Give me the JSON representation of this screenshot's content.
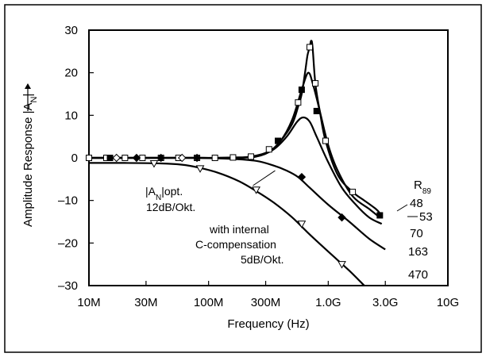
{
  "chart_data": {
    "type": "line",
    "x_scale": "log",
    "xlabel": "Frequency (Hz)",
    "ylabel_main": "Amplitude Response |A",
    "ylabel_sub": "N",
    "ylabel_end": "|",
    "xlim": [
      10000000,
      10000000000
    ],
    "ylim": [
      -30,
      30
    ],
    "x_ticks": [
      {
        "value": 10000000,
        "label": "10M"
      },
      {
        "value": 30000000,
        "label": "30M"
      },
      {
        "value": 100000000,
        "label": "100M"
      },
      {
        "value": 300000000,
        "label": "300M"
      },
      {
        "value": 1000000000,
        "label": "1.0G"
      },
      {
        "value": 3000000000,
        "label": "3.0G"
      },
      {
        "value": 10000000000,
        "label": "10G"
      }
    ],
    "y_ticks": [
      {
        "value": 30,
        "label": "30"
      },
      {
        "value": 20,
        "label": "20"
      },
      {
        "value": 10,
        "label": "10"
      },
      {
        "value": 0,
        "label": "0"
      },
      {
        "value": -10,
        "label": "–10"
      },
      {
        "value": -20,
        "label": "–20"
      },
      {
        "value": -30,
        "label": "–30"
      }
    ],
    "legend_title_main": "R",
    "legend_title_sub": "89",
    "series": [
      {
        "name": "48",
        "marker": "open-square",
        "points": [
          [
            10000000,
            0
          ],
          [
            14000000,
            0
          ],
          [
            20000000,
            0
          ],
          [
            28000000,
            0
          ],
          [
            40000000,
            0
          ],
          [
            56000000,
            0
          ],
          [
            80000000,
            0
          ],
          [
            113000000,
            0
          ],
          [
            160000000,
            0.1
          ],
          [
            226000000,
            0.3
          ],
          [
            320000000,
            1.5
          ],
          [
            400000000,
            4
          ],
          [
            500000000,
            8
          ],
          [
            560000000,
            12
          ],
          [
            600000000,
            15
          ],
          [
            640000000,
            20
          ],
          [
            670000000,
            24
          ],
          [
            700000000,
            26
          ],
          [
            720000000,
            27.5
          ],
          [
            740000000,
            26
          ],
          [
            780000000,
            17.5
          ],
          [
            850000000,
            11
          ],
          [
            950000000,
            4
          ],
          [
            1200000000,
            -4
          ],
          [
            1600000000,
            -8
          ],
          [
            2000000000,
            -10
          ],
          [
            2500000000,
            -12
          ],
          [
            2700000000,
            -13
          ]
        ],
        "marker_points": [
          [
            10000000,
            0
          ],
          [
            14000000,
            0
          ],
          [
            20000000,
            0
          ],
          [
            28000000,
            0
          ],
          [
            40000000,
            0
          ],
          [
            56000000,
            0
          ],
          [
            80000000,
            0
          ],
          [
            113000000,
            0
          ],
          [
            160000000,
            0.1
          ],
          [
            226000000,
            0.3
          ],
          [
            320000000,
            2
          ],
          [
            560000000,
            13
          ],
          [
            700000000,
            26
          ],
          [
            780000000,
            17.5
          ],
          [
            950000000,
            4
          ],
          [
            1600000000,
            -8
          ]
        ]
      },
      {
        "name": "53",
        "marker": "filled-square",
        "points": [
          [
            10000000,
            0
          ],
          [
            15000000,
            0
          ],
          [
            25000000,
            0
          ],
          [
            40000000,
            0
          ],
          [
            70000000,
            0
          ],
          [
            120000000,
            0
          ],
          [
            200000000,
            0.1
          ],
          [
            300000000,
            1
          ],
          [
            400000000,
            4
          ],
          [
            500000000,
            9
          ],
          [
            600000000,
            16
          ],
          [
            680000000,
            20
          ],
          [
            750000000,
            17
          ],
          [
            850000000,
            11
          ],
          [
            1000000000,
            3
          ],
          [
            1200000000,
            -3
          ],
          [
            1600000000,
            -9
          ],
          [
            2200000000,
            -12
          ],
          [
            2700000000,
            -14
          ]
        ],
        "marker_points": [
          [
            15000000,
            0
          ],
          [
            380000000,
            4
          ],
          [
            600000000,
            16
          ],
          [
            800000000,
            11
          ],
          [
            2700000000,
            -13.5
          ]
        ]
      },
      {
        "name": "70",
        "marker": "none",
        "points": [
          [
            10000000,
            0
          ],
          [
            20000000,
            0
          ],
          [
            40000000,
            0
          ],
          [
            80000000,
            0
          ],
          [
            150000000,
            0
          ],
          [
            250000000,
            0.3
          ],
          [
            350000000,
            2
          ],
          [
            450000000,
            5
          ],
          [
            550000000,
            8.5
          ],
          [
            620000000,
            9.5
          ],
          [
            700000000,
            8.5
          ],
          [
            800000000,
            5
          ],
          [
            1000000000,
            -1
          ],
          [
            1300000000,
            -7
          ],
          [
            1700000000,
            -11
          ],
          [
            2200000000,
            -14
          ],
          [
            2800000000,
            -15.5
          ]
        ],
        "marker_points": []
      },
      {
        "name": "163",
        "marker": "filled-diamond",
        "points": [
          [
            10000000,
            0
          ],
          [
            20000000,
            0
          ],
          [
            40000000,
            0
          ],
          [
            80000000,
            0
          ],
          [
            150000000,
            -0.2
          ],
          [
            250000000,
            -0.7
          ],
          [
            350000000,
            -1.8
          ],
          [
            450000000,
            -3
          ],
          [
            560000000,
            -4.5
          ],
          [
            700000000,
            -7
          ],
          [
            1000000000,
            -11
          ],
          [
            1500000000,
            -15
          ],
          [
            2200000000,
            -19
          ],
          [
            3000000000,
            -21.5
          ]
        ],
        "marker_points": [
          [
            25000000,
            0
          ],
          [
            40000000,
            0
          ],
          [
            80000000,
            0
          ],
          [
            600000000,
            -4.5
          ],
          [
            1300000000,
            -14
          ]
        ]
      },
      {
        "name": "470",
        "marker": "open-triangle",
        "points": [
          [
            10000000,
            -1.2
          ],
          [
            20000000,
            -1.2
          ],
          [
            40000000,
            -1.3
          ],
          [
            60000000,
            -1.6
          ],
          [
            80000000,
            -2.2
          ],
          [
            120000000,
            -3.5
          ],
          [
            180000000,
            -5.5
          ],
          [
            250000000,
            -7.8
          ],
          [
            350000000,
            -10.5
          ],
          [
            500000000,
            -14
          ],
          [
            700000000,
            -18
          ],
          [
            1000000000,
            -22
          ],
          [
            1500000000,
            -26.5
          ],
          [
            2000000000,
            -30
          ]
        ],
        "marker_points": [
          [
            35000000,
            -1.3
          ],
          [
            85000000,
            -2.5
          ],
          [
            250000000,
            -7.5
          ],
          [
            600000000,
            -15.5
          ],
          [
            1300000000,
            -25
          ]
        ]
      }
    ],
    "annotations": {
      "optimal_line": [
        [
          235000000,
          -6.5
        ],
        [
          360000000,
          -3
        ]
      ],
      "optimal_main": "|A",
      "optimal_sub": "N",
      "optimal_end": "|opt.",
      "optimal_slope": "12dB/Okt.",
      "comp_line1": "with internal",
      "comp_line2": "C-compensation",
      "comp_line3": "5dB/Okt."
    }
  }
}
